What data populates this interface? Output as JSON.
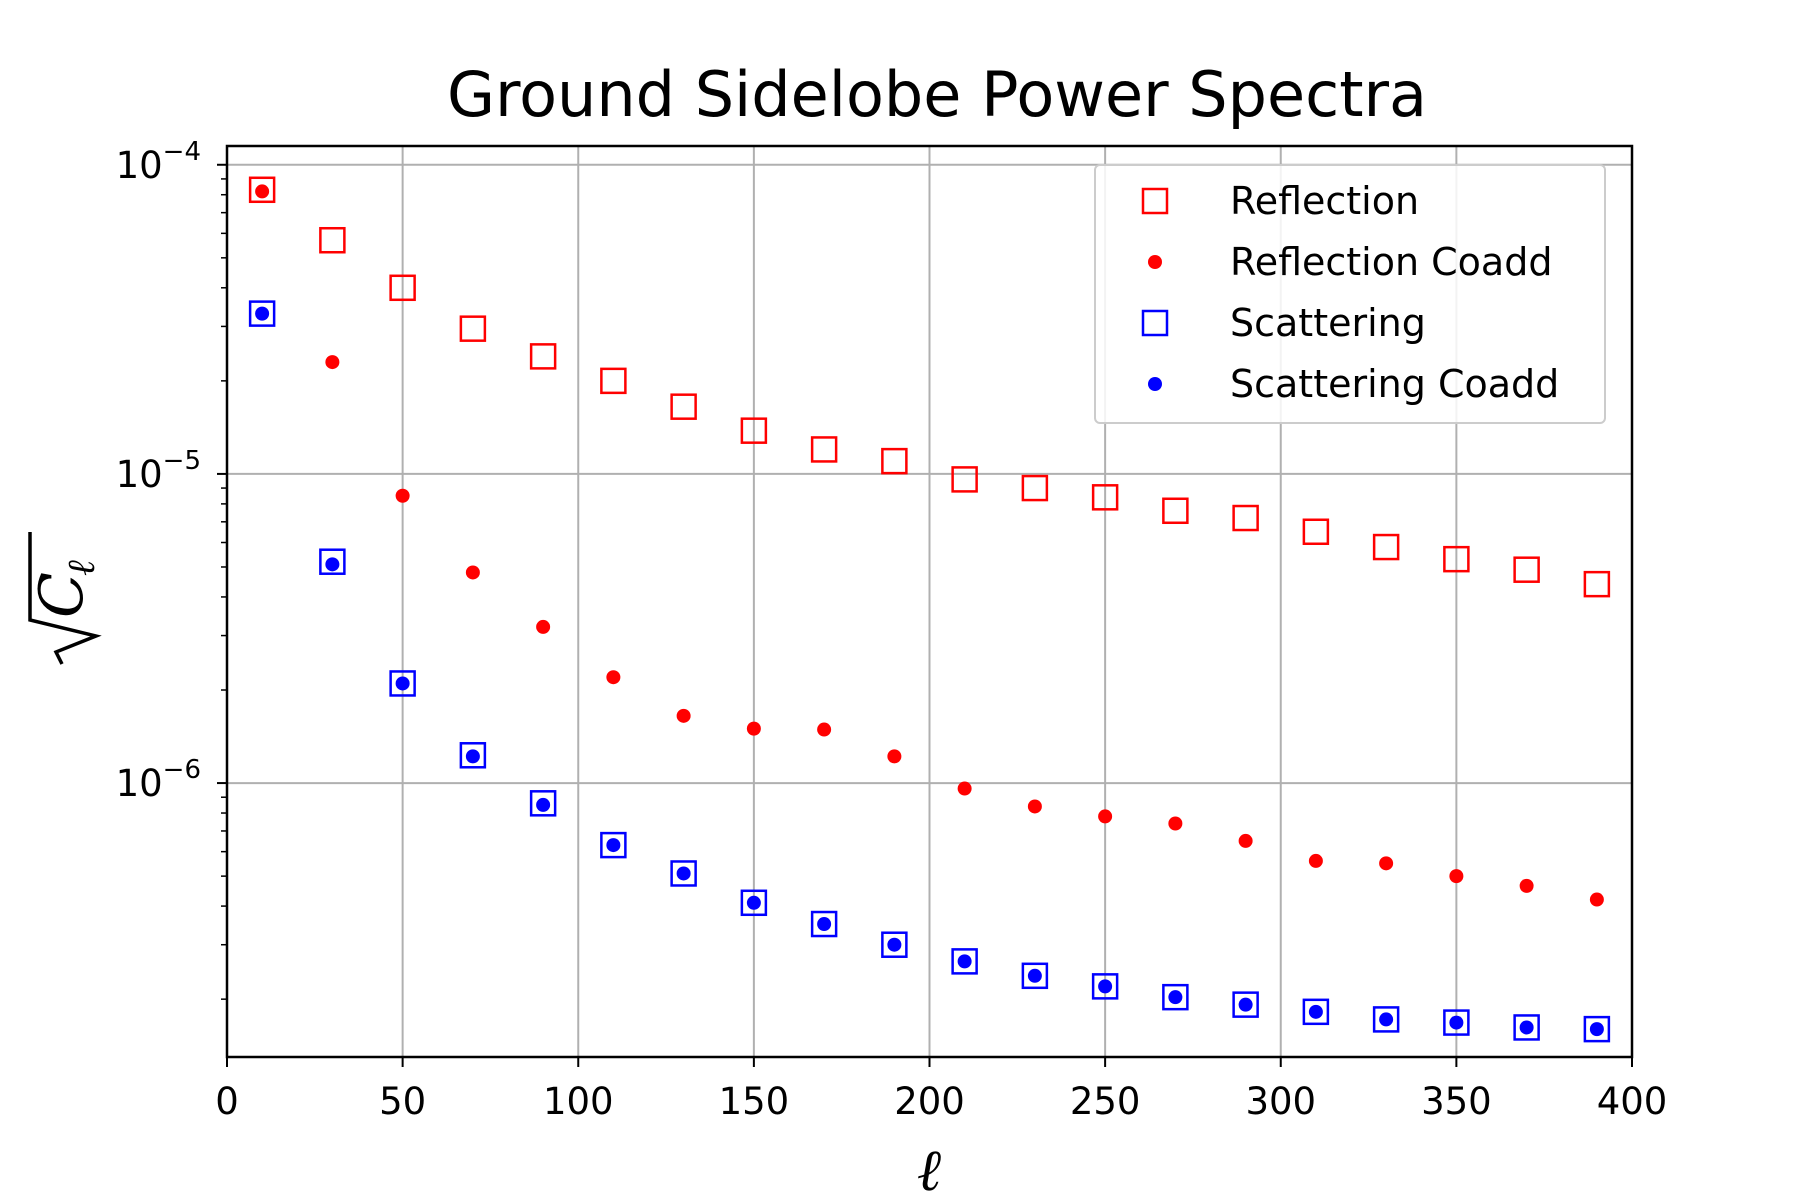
{
  "chart_data": {
    "type": "scatter",
    "title": "Ground Sidelobe Power Spectra",
    "xlabel": "ℓ",
    "ylabel": "√C_ℓ",
    "ylabel_parts": {
      "symbol": "C",
      "subscript": "ℓ"
    },
    "xlim": [
      0,
      400
    ],
    "ylim": [
      1.3e-07,
      0.000115
    ],
    "yscale": "log",
    "grid": true,
    "legend_position": "top-right",
    "x_ticks": [
      0,
      50,
      100,
      150,
      200,
      250,
      300,
      350,
      400
    ],
    "y_ticks": [
      {
        "value": 1e-06,
        "base": "10",
        "exp": "−6"
      },
      {
        "value": 1e-05,
        "base": "10",
        "exp": "−5"
      },
      {
        "value": 0.0001,
        "base": "10",
        "exp": "−4"
      }
    ],
    "x": [
      10,
      30,
      50,
      70,
      90,
      110,
      130,
      150,
      170,
      190,
      210,
      230,
      250,
      270,
      290,
      310,
      330,
      350,
      370,
      390
    ],
    "series": [
      {
        "name": "Reflection",
        "marker": "hollow-square",
        "color": "#ff0000",
        "values": [
          8.3e-05,
          5.7e-05,
          4e-05,
          2.95e-05,
          2.4e-05,
          2e-05,
          1.65e-05,
          1.38e-05,
          1.2e-05,
          1.1e-05,
          9.6e-06,
          9e-06,
          8.4e-06,
          7.6e-06,
          7.2e-06,
          6.5e-06,
          5.8e-06,
          5.3e-06,
          4.9e-06,
          4.4e-06
        ]
      },
      {
        "name": "Reflection Coadd",
        "marker": "dot",
        "color": "#ff0000",
        "values": [
          8.2e-05,
          2.3e-05,
          8.5e-06,
          4.8e-06,
          3.2e-06,
          2.2e-06,
          1.65e-06,
          1.5e-06,
          1.49e-06,
          1.22e-06,
          9.6e-07,
          8.4e-07,
          7.8e-07,
          7.4e-07,
          6.5e-07,
          5.6e-07,
          5.5e-07,
          5e-07,
          4.65e-07,
          4.2e-07
        ]
      },
      {
        "name": "Scattering",
        "marker": "hollow-square",
        "color": "#0000ff",
        "values": [
          3.3e-05,
          5.2e-06,
          2.1e-06,
          1.23e-06,
          8.6e-07,
          6.3e-07,
          5.1e-07,
          4.1e-07,
          3.5e-07,
          3e-07,
          2.65e-07,
          2.38e-07,
          2.2e-07,
          2.03e-07,
          1.92e-07,
          1.82e-07,
          1.72e-07,
          1.68e-07,
          1.62e-07,
          1.6e-07
        ]
      },
      {
        "name": "Scattering Coadd",
        "marker": "dot",
        "color": "#0000ff",
        "values": [
          3.3e-05,
          5.1e-06,
          2.1e-06,
          1.22e-06,
          8.5e-07,
          6.3e-07,
          5.1e-07,
          4.1e-07,
          3.5e-07,
          3e-07,
          2.65e-07,
          2.38e-07,
          2.2e-07,
          2.03e-07,
          1.92e-07,
          1.82e-07,
          1.72e-07,
          1.68e-07,
          1.62e-07,
          1.6e-07
        ]
      }
    ]
  }
}
